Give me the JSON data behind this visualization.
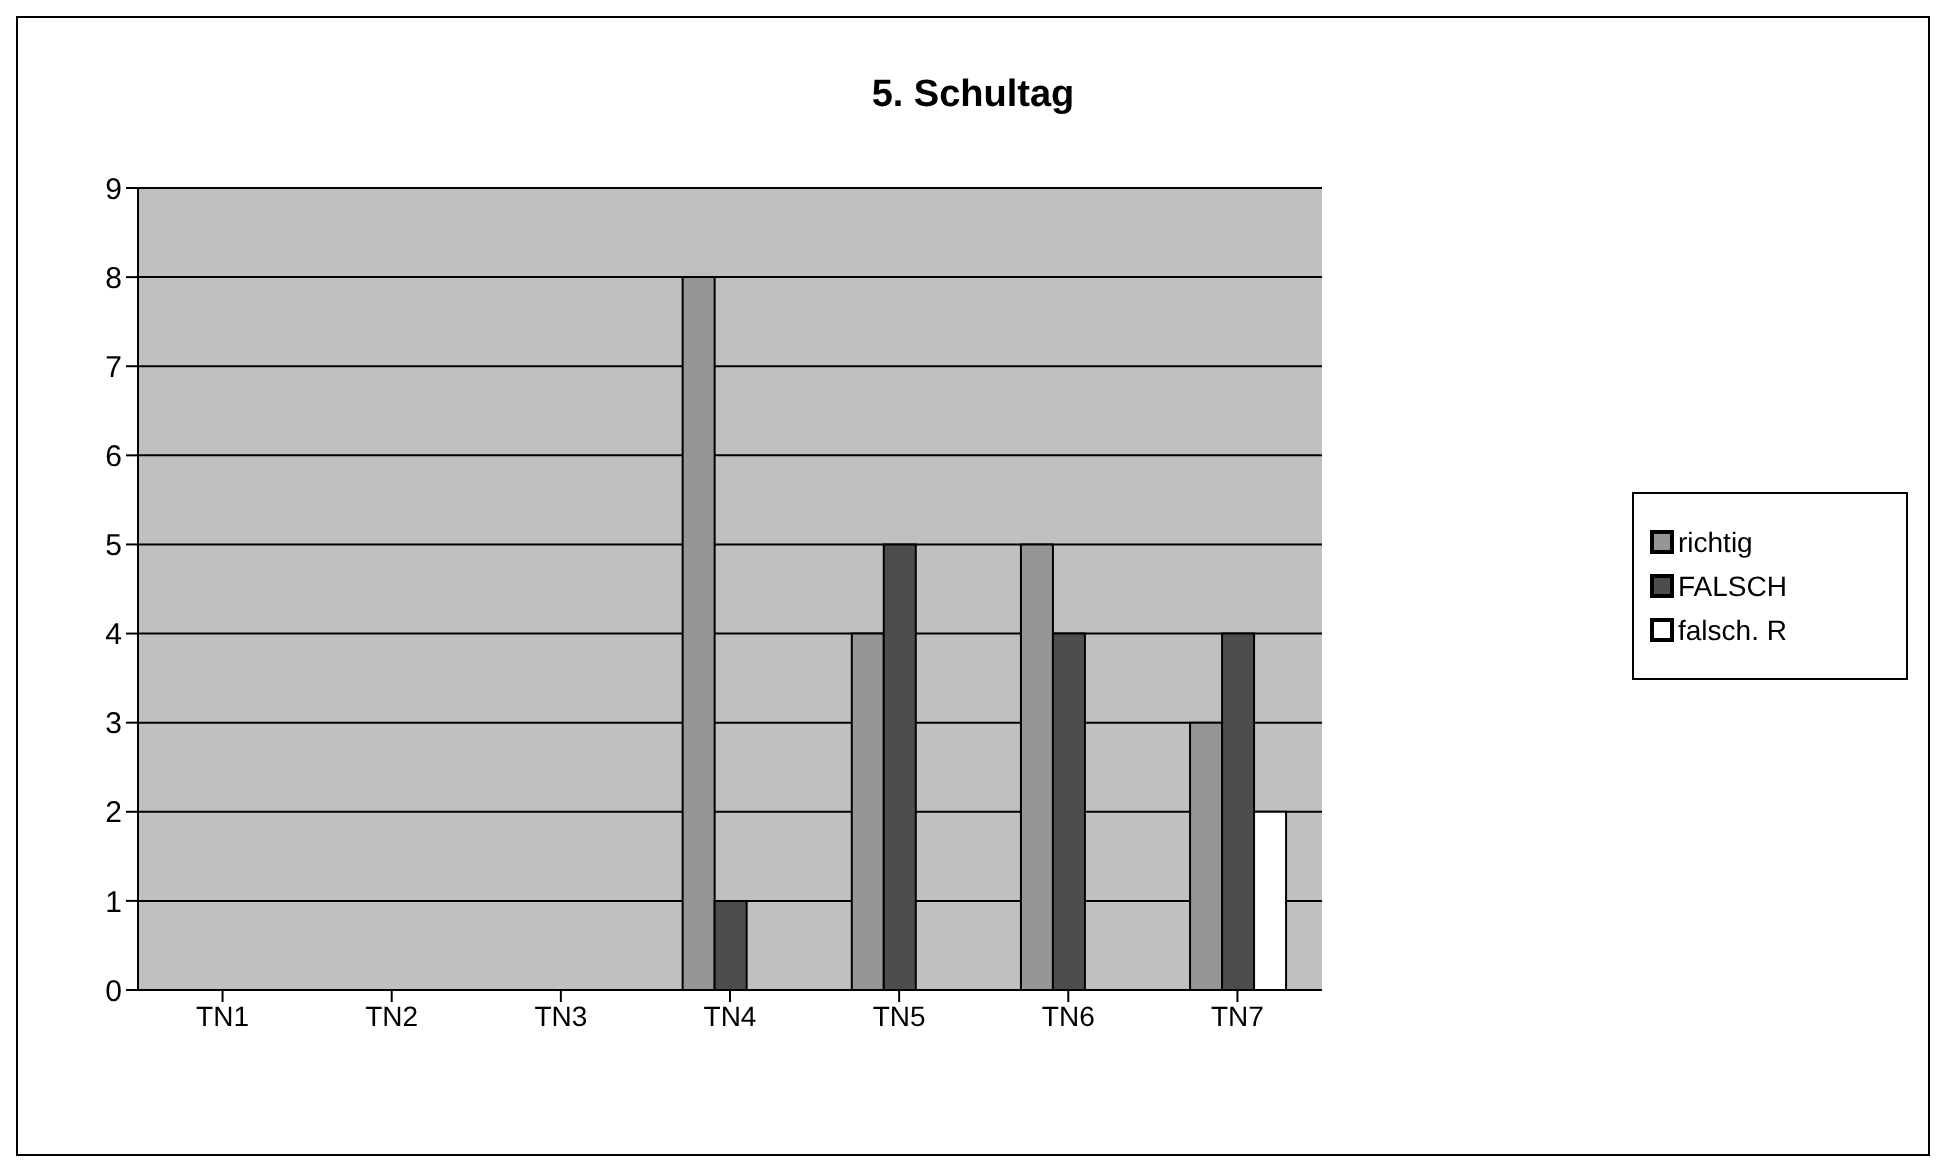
{
  "chart_data": {
    "type": "bar",
    "title": "5. Schultag",
    "categories": [
      "TN1",
      "TN2",
      "TN3",
      "TN4",
      "TN5",
      "TN6",
      "TN7"
    ],
    "series": [
      {
        "name": "richtig",
        "color": "#969696",
        "values": [
          0,
          0,
          0,
          8,
          4,
          5,
          3
        ]
      },
      {
        "name": "FALSCH",
        "color": "#4d4d4d",
        "values": [
          0,
          0,
          0,
          1,
          5,
          4,
          4
        ]
      },
      {
        "name": "falsch. R",
        "color": "#ffffff",
        "values": [
          0,
          0,
          0,
          0,
          0,
          0,
          2
        ]
      }
    ],
    "ylim": [
      0,
      9
    ],
    "yticks": [
      0,
      1,
      2,
      3,
      4,
      5,
      6,
      7,
      8,
      9
    ],
    "grid": "y",
    "legend": "right"
  }
}
